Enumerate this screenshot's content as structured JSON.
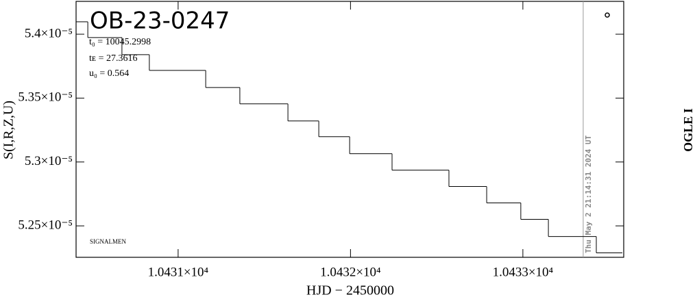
{
  "chart_data": {
    "type": "step",
    "title": "OB-23-0247",
    "annotations": [
      "t₀ = 10045.2998",
      "tᴇ = 27.3616",
      "u₀ = 0.564"
    ],
    "corner_label": "SIGNALMEN",
    "xlabel": "HJD − 2450000",
    "ylabel": "S(I,R,Z,U)",
    "right_label": "OGLE I",
    "timestamp": "Thu May  2 21:14:31 2024 UT",
    "now_x": 10433.35,
    "x": [
      10430.408,
      10430.476,
      10430.674,
      10430.833,
      10431.16,
      10431.358,
      10431.637,
      10431.816,
      10431.995,
      10432.241,
      10432.571,
      10432.79,
      10432.988,
      10433.148,
      10433.426,
      10433.577
    ],
    "values": [
      5.4097e-05,
      5.3974e-05,
      5.384e-05,
      5.3717e-05,
      5.3583e-05,
      5.3455e-05,
      5.3321e-05,
      5.3198e-05,
      5.3065e-05,
      5.2936e-05,
      5.2808e-05,
      5.268e-05,
      5.2551e-05,
      5.2417e-05,
      5.2289e-05,
      5.2289e-05
    ],
    "color": "#000000",
    "xlim": [
      10430.408,
      10433.585
    ],
    "ylim": [
      5.2254e-05,
      5.4257e-05
    ],
    "xticks": [
      {
        "value": 10431,
        "label": "1.0431×10⁴"
      },
      {
        "value": 10432,
        "label": "1.0432×10⁴"
      },
      {
        "value": 10433,
        "label": "1.0433×10⁴"
      }
    ],
    "yticks": [
      {
        "value": 5.4e-05,
        "label": "5.4×10⁻⁵"
      },
      {
        "value": 5.35e-05,
        "label": "5.35×10⁻⁵"
      },
      {
        "value": 5.3e-05,
        "label": "5.3×10⁻⁵"
      },
      {
        "value": 5.25e-05,
        "label": "5.25×10⁻⁵"
      }
    ]
  }
}
